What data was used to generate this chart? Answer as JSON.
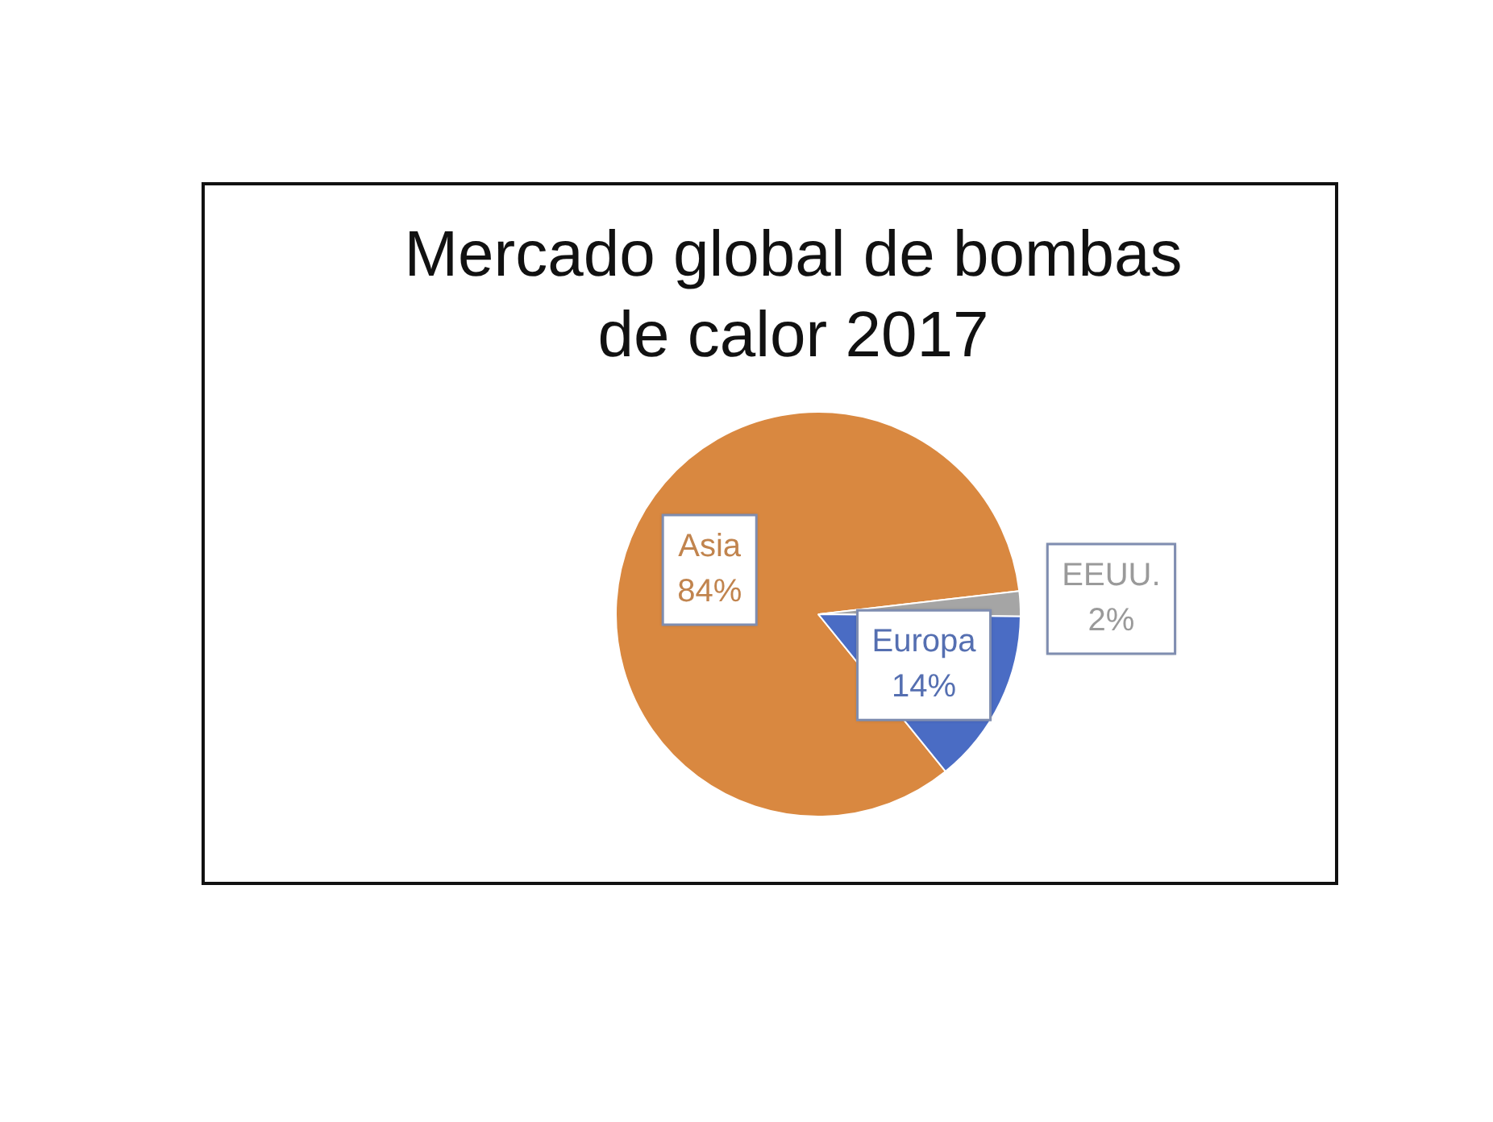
{
  "chart_data": {
    "type": "pie",
    "title": "Mercado global de bombas de calor 2017",
    "categories": [
      "Asia",
      "EEUU.",
      "Europa"
    ],
    "values": [
      84,
      2,
      14
    ],
    "colors": [
      "#d98840",
      "#a5a5a5",
      "#4a6cc4"
    ],
    "value_labels": [
      "84%",
      "2%",
      "14%"
    ],
    "legend": false
  }
}
